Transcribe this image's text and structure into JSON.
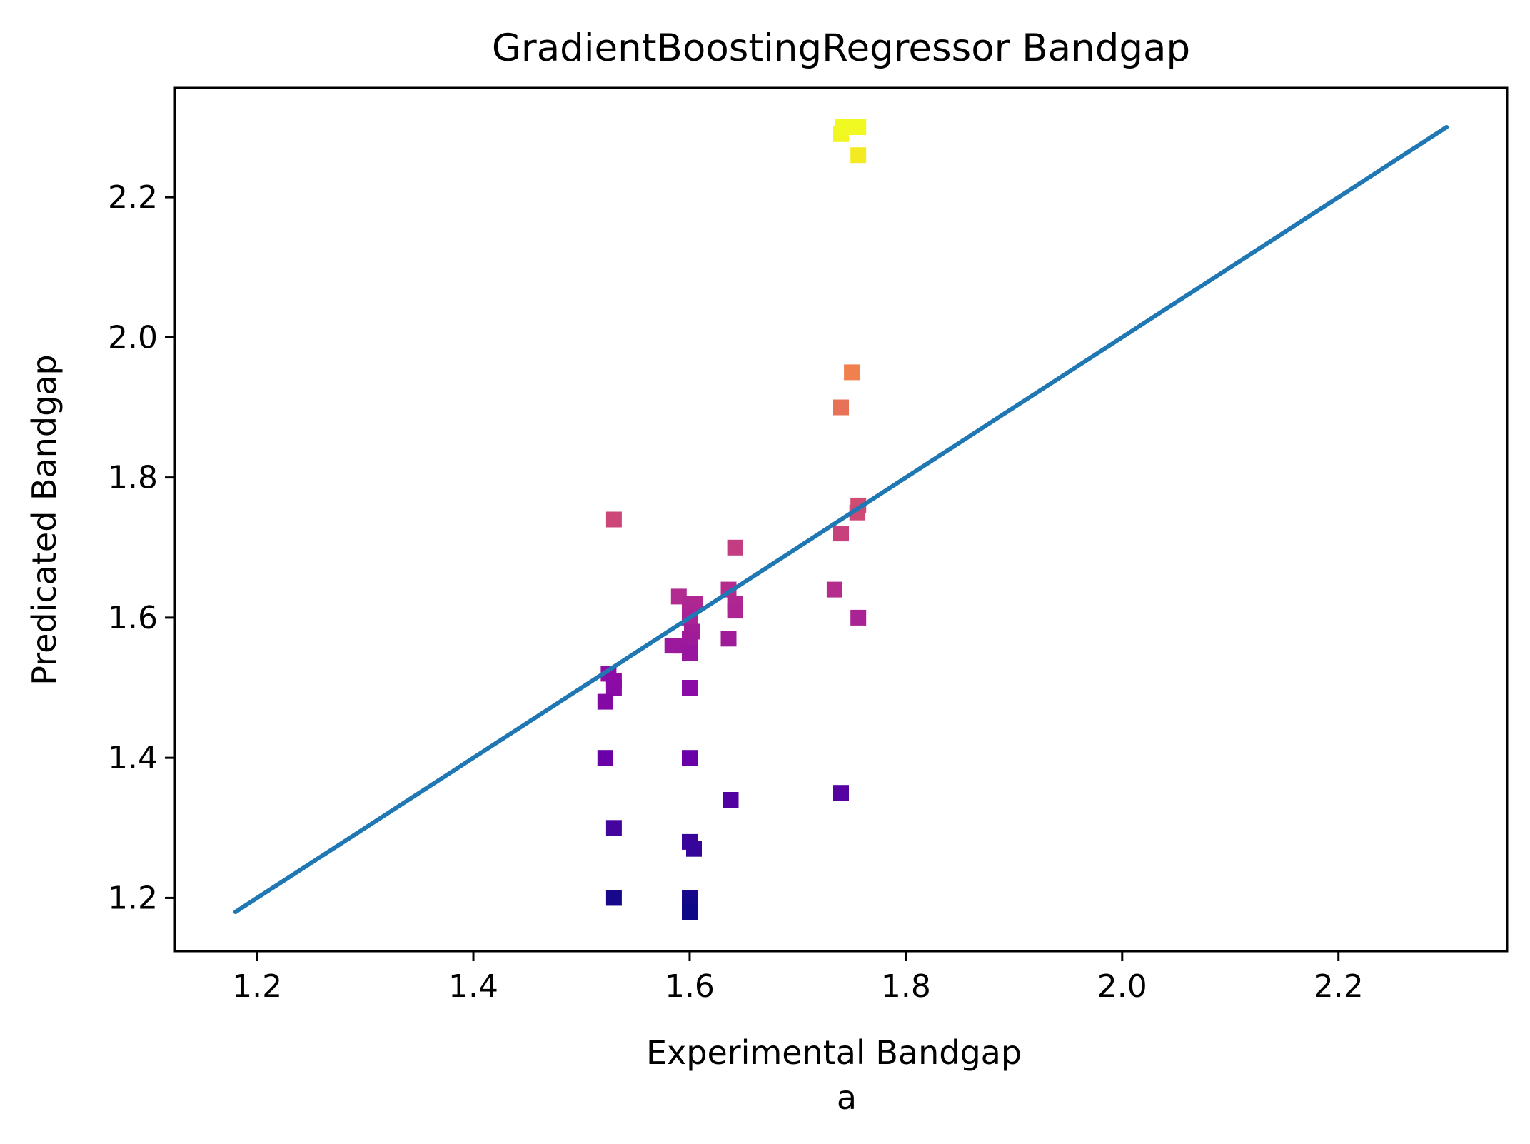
{
  "chart_data": {
    "type": "scatter",
    "title": "GradientBoostingRegressor Bandgap",
    "xlabel": "Experimental Bandgap",
    "xlabel_sub": "a",
    "ylabel": "Predicated Bandgap",
    "xlim": [
      1.124,
      2.356
    ],
    "ylim": [
      1.124,
      2.356
    ],
    "xticks": [
      "1.2",
      "1.4",
      "1.6",
      "1.8",
      "2.0",
      "2.2"
    ],
    "yticks": [
      "1.2",
      "1.4",
      "1.6",
      "1.8",
      "2.0",
      "2.2"
    ],
    "grid": false,
    "colormap": "plasma",
    "color_range": [
      1.18,
      2.3
    ],
    "line": {
      "x": [
        1.18,
        2.3
      ],
      "y": [
        1.18,
        2.3
      ],
      "color": "#1f77b4"
    },
    "points": [
      {
        "x": 1.74,
        "y": 2.29
      },
      {
        "x": 1.742,
        "y": 2.3
      },
      {
        "x": 1.756,
        "y": 2.3
      },
      {
        "x": 1.756,
        "y": 2.26
      },
      {
        "x": 1.75,
        "y": 1.95
      },
      {
        "x": 1.74,
        "y": 1.9
      },
      {
        "x": 1.756,
        "y": 1.76
      },
      {
        "x": 1.755,
        "y": 1.75
      },
      {
        "x": 1.74,
        "y": 1.72
      },
      {
        "x": 1.734,
        "y": 1.64
      },
      {
        "x": 1.756,
        "y": 1.6
      },
      {
        "x": 1.74,
        "y": 1.35
      },
      {
        "x": 1.53,
        "y": 1.74
      },
      {
        "x": 1.642,
        "y": 1.7
      },
      {
        "x": 1.636,
        "y": 1.64
      },
      {
        "x": 1.642,
        "y": 1.62
      },
      {
        "x": 1.642,
        "y": 1.61
      },
      {
        "x": 1.636,
        "y": 1.57
      },
      {
        "x": 1.638,
        "y": 1.34
      },
      {
        "x": 1.59,
        "y": 1.63
      },
      {
        "x": 1.6,
        "y": 1.62
      },
      {
        "x": 1.605,
        "y": 1.62
      },
      {
        "x": 1.6,
        "y": 1.61
      },
      {
        "x": 1.6,
        "y": 1.6
      },
      {
        "x": 1.602,
        "y": 1.58
      },
      {
        "x": 1.6,
        "y": 1.57
      },
      {
        "x": 1.584,
        "y": 1.56
      },
      {
        "x": 1.592,
        "y": 1.56
      },
      {
        "x": 1.6,
        "y": 1.55
      },
      {
        "x": 1.6,
        "y": 1.5
      },
      {
        "x": 1.6,
        "y": 1.4
      },
      {
        "x": 1.6,
        "y": 1.28
      },
      {
        "x": 1.604,
        "y": 1.27
      },
      {
        "x": 1.6,
        "y": 1.2
      },
      {
        "x": 1.6,
        "y": 1.19
      },
      {
        "x": 1.6,
        "y": 1.18
      },
      {
        "x": 1.525,
        "y": 1.52
      },
      {
        "x": 1.53,
        "y": 1.51
      },
      {
        "x": 1.53,
        "y": 1.5
      },
      {
        "x": 1.522,
        "y": 1.48
      },
      {
        "x": 1.522,
        "y": 1.4
      },
      {
        "x": 1.53,
        "y": 1.3
      },
      {
        "x": 1.53,
        "y": 1.2
      }
    ]
  }
}
